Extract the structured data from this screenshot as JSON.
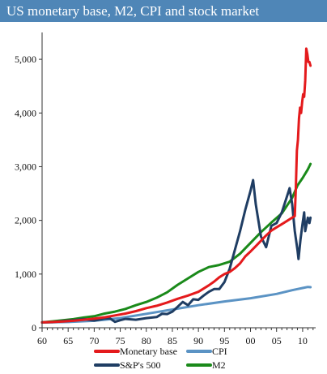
{
  "chart_data": {
    "type": "line",
    "title": "US monetary base, M2, CPI and stock market",
    "xlabel": "",
    "ylabel": "",
    "xlim": [
      1960,
      2012.5
    ],
    "ylim": [
      0,
      5500
    ],
    "x_ticks": [
      {
        "value": 1960,
        "label": "60"
      },
      {
        "value": 1965,
        "label": "65"
      },
      {
        "value": 1970,
        "label": "70"
      },
      {
        "value": 1975,
        "label": "75"
      },
      {
        "value": 1980,
        "label": "80"
      },
      {
        "value": 1985,
        "label": "85"
      },
      {
        "value": 1990,
        "label": "90"
      },
      {
        "value": 1995,
        "label": "95"
      },
      {
        "value": 2000,
        "label": "00"
      },
      {
        "value": 2005,
        "label": "05"
      },
      {
        "value": 2010,
        "label": "10"
      }
    ],
    "y_ticks": [
      {
        "value": 0,
        "label": "0"
      },
      {
        "value": 1000,
        "label": "1,000"
      },
      {
        "value": 2000,
        "label": "2,000"
      },
      {
        "value": 3000,
        "label": "3,000"
      },
      {
        "value": 4000,
        "label": "4,000"
      },
      {
        "value": 5000,
        "label": "5,000"
      }
    ],
    "grid": false,
    "legend_position": "bottom",
    "series": [
      {
        "name": "Monetary base",
        "color": "#e41a1c",
        "points": [
          [
            1960,
            100
          ],
          [
            1962,
            108
          ],
          [
            1964,
            118
          ],
          [
            1966,
            130
          ],
          [
            1968,
            150
          ],
          [
            1970,
            170
          ],
          [
            1972,
            195
          ],
          [
            1974,
            230
          ],
          [
            1976,
            265
          ],
          [
            1978,
            310
          ],
          [
            1980,
            365
          ],
          [
            1982,
            410
          ],
          [
            1984,
            470
          ],
          [
            1986,
            540
          ],
          [
            1988,
            600
          ],
          [
            1990,
            670
          ],
          [
            1991,
            730
          ],
          [
            1992,
            790
          ],
          [
            1993,
            860
          ],
          [
            1994,
            940
          ],
          [
            1995,
            1000
          ],
          [
            1996,
            1040
          ],
          [
            1997,
            1110
          ],
          [
            1998,
            1200
          ],
          [
            1999,
            1330
          ],
          [
            2000,
            1420
          ],
          [
            2001,
            1520
          ],
          [
            2002,
            1620
          ],
          [
            2003,
            1720
          ],
          [
            2004,
            1810
          ],
          [
            2005,
            1870
          ],
          [
            2006,
            1930
          ],
          [
            2007,
            1990
          ],
          [
            2008.0,
            2050
          ],
          [
            2008.5,
            2080
          ],
          [
            2008.7,
            2600
          ],
          [
            2008.9,
            3300
          ],
          [
            2009.1,
            3500
          ],
          [
            2009.3,
            3900
          ],
          [
            2009.5,
            4100
          ],
          [
            2009.7,
            4000
          ],
          [
            2009.9,
            4200
          ],
          [
            2010.1,
            4350
          ],
          [
            2010.3,
            4300
          ],
          [
            2010.5,
            4600
          ],
          [
            2010.7,
            5200
          ],
          [
            2010.9,
            5100
          ],
          [
            2011.1,
            4950
          ],
          [
            2011.3,
            4950
          ],
          [
            2011.5,
            4880
          ]
        ]
      },
      {
        "name": "CPI",
        "color": "#5b93c4",
        "points": [
          [
            1960,
            100
          ],
          [
            1965,
            108
          ],
          [
            1970,
            130
          ],
          [
            1975,
            180
          ],
          [
            1980,
            260
          ],
          [
            1985,
            340
          ],
          [
            1990,
            420
          ],
          [
            1995,
            490
          ],
          [
            2000,
            550
          ],
          [
            2005,
            630
          ],
          [
            2008,
            700
          ],
          [
            2009,
            720
          ],
          [
            2010,
            740
          ],
          [
            2011,
            760
          ],
          [
            2011.5,
            755
          ]
        ]
      },
      {
        "name": "S&P's 500",
        "color": "#1f3d63",
        "points": [
          [
            1960,
            100
          ],
          [
            1962,
            105
          ],
          [
            1964,
            125
          ],
          [
            1966,
            140
          ],
          [
            1968,
            160
          ],
          [
            1970,
            135
          ],
          [
            1972,
            170
          ],
          [
            1973,
            175
          ],
          [
            1974,
            110
          ],
          [
            1975,
            140
          ],
          [
            1976,
            165
          ],
          [
            1978,
            150
          ],
          [
            1980,
            180
          ],
          [
            1982,
            200
          ],
          [
            1983,
            260
          ],
          [
            1984,
            255
          ],
          [
            1985,
            300
          ],
          [
            1986,
            390
          ],
          [
            1987,
            480
          ],
          [
            1988,
            420
          ],
          [
            1989,
            530
          ],
          [
            1990,
            520
          ],
          [
            1991,
            600
          ],
          [
            1992,
            670
          ],
          [
            1993,
            720
          ],
          [
            1994,
            720
          ],
          [
            1995,
            850
          ],
          [
            1996,
            1100
          ],
          [
            1997,
            1450
          ],
          [
            1998,
            1800
          ],
          [
            1999,
            2200
          ],
          [
            2000,
            2550
          ],
          [
            2000.5,
            2750
          ],
          [
            2001,
            2300
          ],
          [
            2002,
            1700
          ],
          [
            2003,
            1500
          ],
          [
            2004,
            1900
          ],
          [
            2005,
            1950
          ],
          [
            2006,
            2150
          ],
          [
            2007,
            2450
          ],
          [
            2007.5,
            2600
          ],
          [
            2008.0,
            2300
          ],
          [
            2008.5,
            1800
          ],
          [
            2009.0,
            1450
          ],
          [
            2009.2,
            1280
          ],
          [
            2009.6,
            1650
          ],
          [
            2010.0,
            1950
          ],
          [
            2010.3,
            2150
          ],
          [
            2010.5,
            1800
          ],
          [
            2011.0,
            2050
          ],
          [
            2011.3,
            1950
          ],
          [
            2011.5,
            2050
          ]
        ]
      },
      {
        "name": "M2",
        "color": "#1a8a1a",
        "points": [
          [
            1960,
            100
          ],
          [
            1962,
            120
          ],
          [
            1964,
            140
          ],
          [
            1966,
            160
          ],
          [
            1968,
            190
          ],
          [
            1970,
            215
          ],
          [
            1972,
            265
          ],
          [
            1974,
            300
          ],
          [
            1976,
            350
          ],
          [
            1978,
            420
          ],
          [
            1980,
            480
          ],
          [
            1982,
            560
          ],
          [
            1984,
            660
          ],
          [
            1986,
            800
          ],
          [
            1988,
            920
          ],
          [
            1990,
            1040
          ],
          [
            1992,
            1130
          ],
          [
            1994,
            1170
          ],
          [
            1996,
            1230
          ],
          [
            1998,
            1380
          ],
          [
            2000,
            1580
          ],
          [
            2002,
            1780
          ],
          [
            2004,
            1960
          ],
          [
            2006,
            2130
          ],
          [
            2008,
            2420
          ],
          [
            2009,
            2650
          ],
          [
            2010,
            2790
          ],
          [
            2011,
            2950
          ],
          [
            2011.5,
            3050
          ]
        ]
      }
    ]
  }
}
